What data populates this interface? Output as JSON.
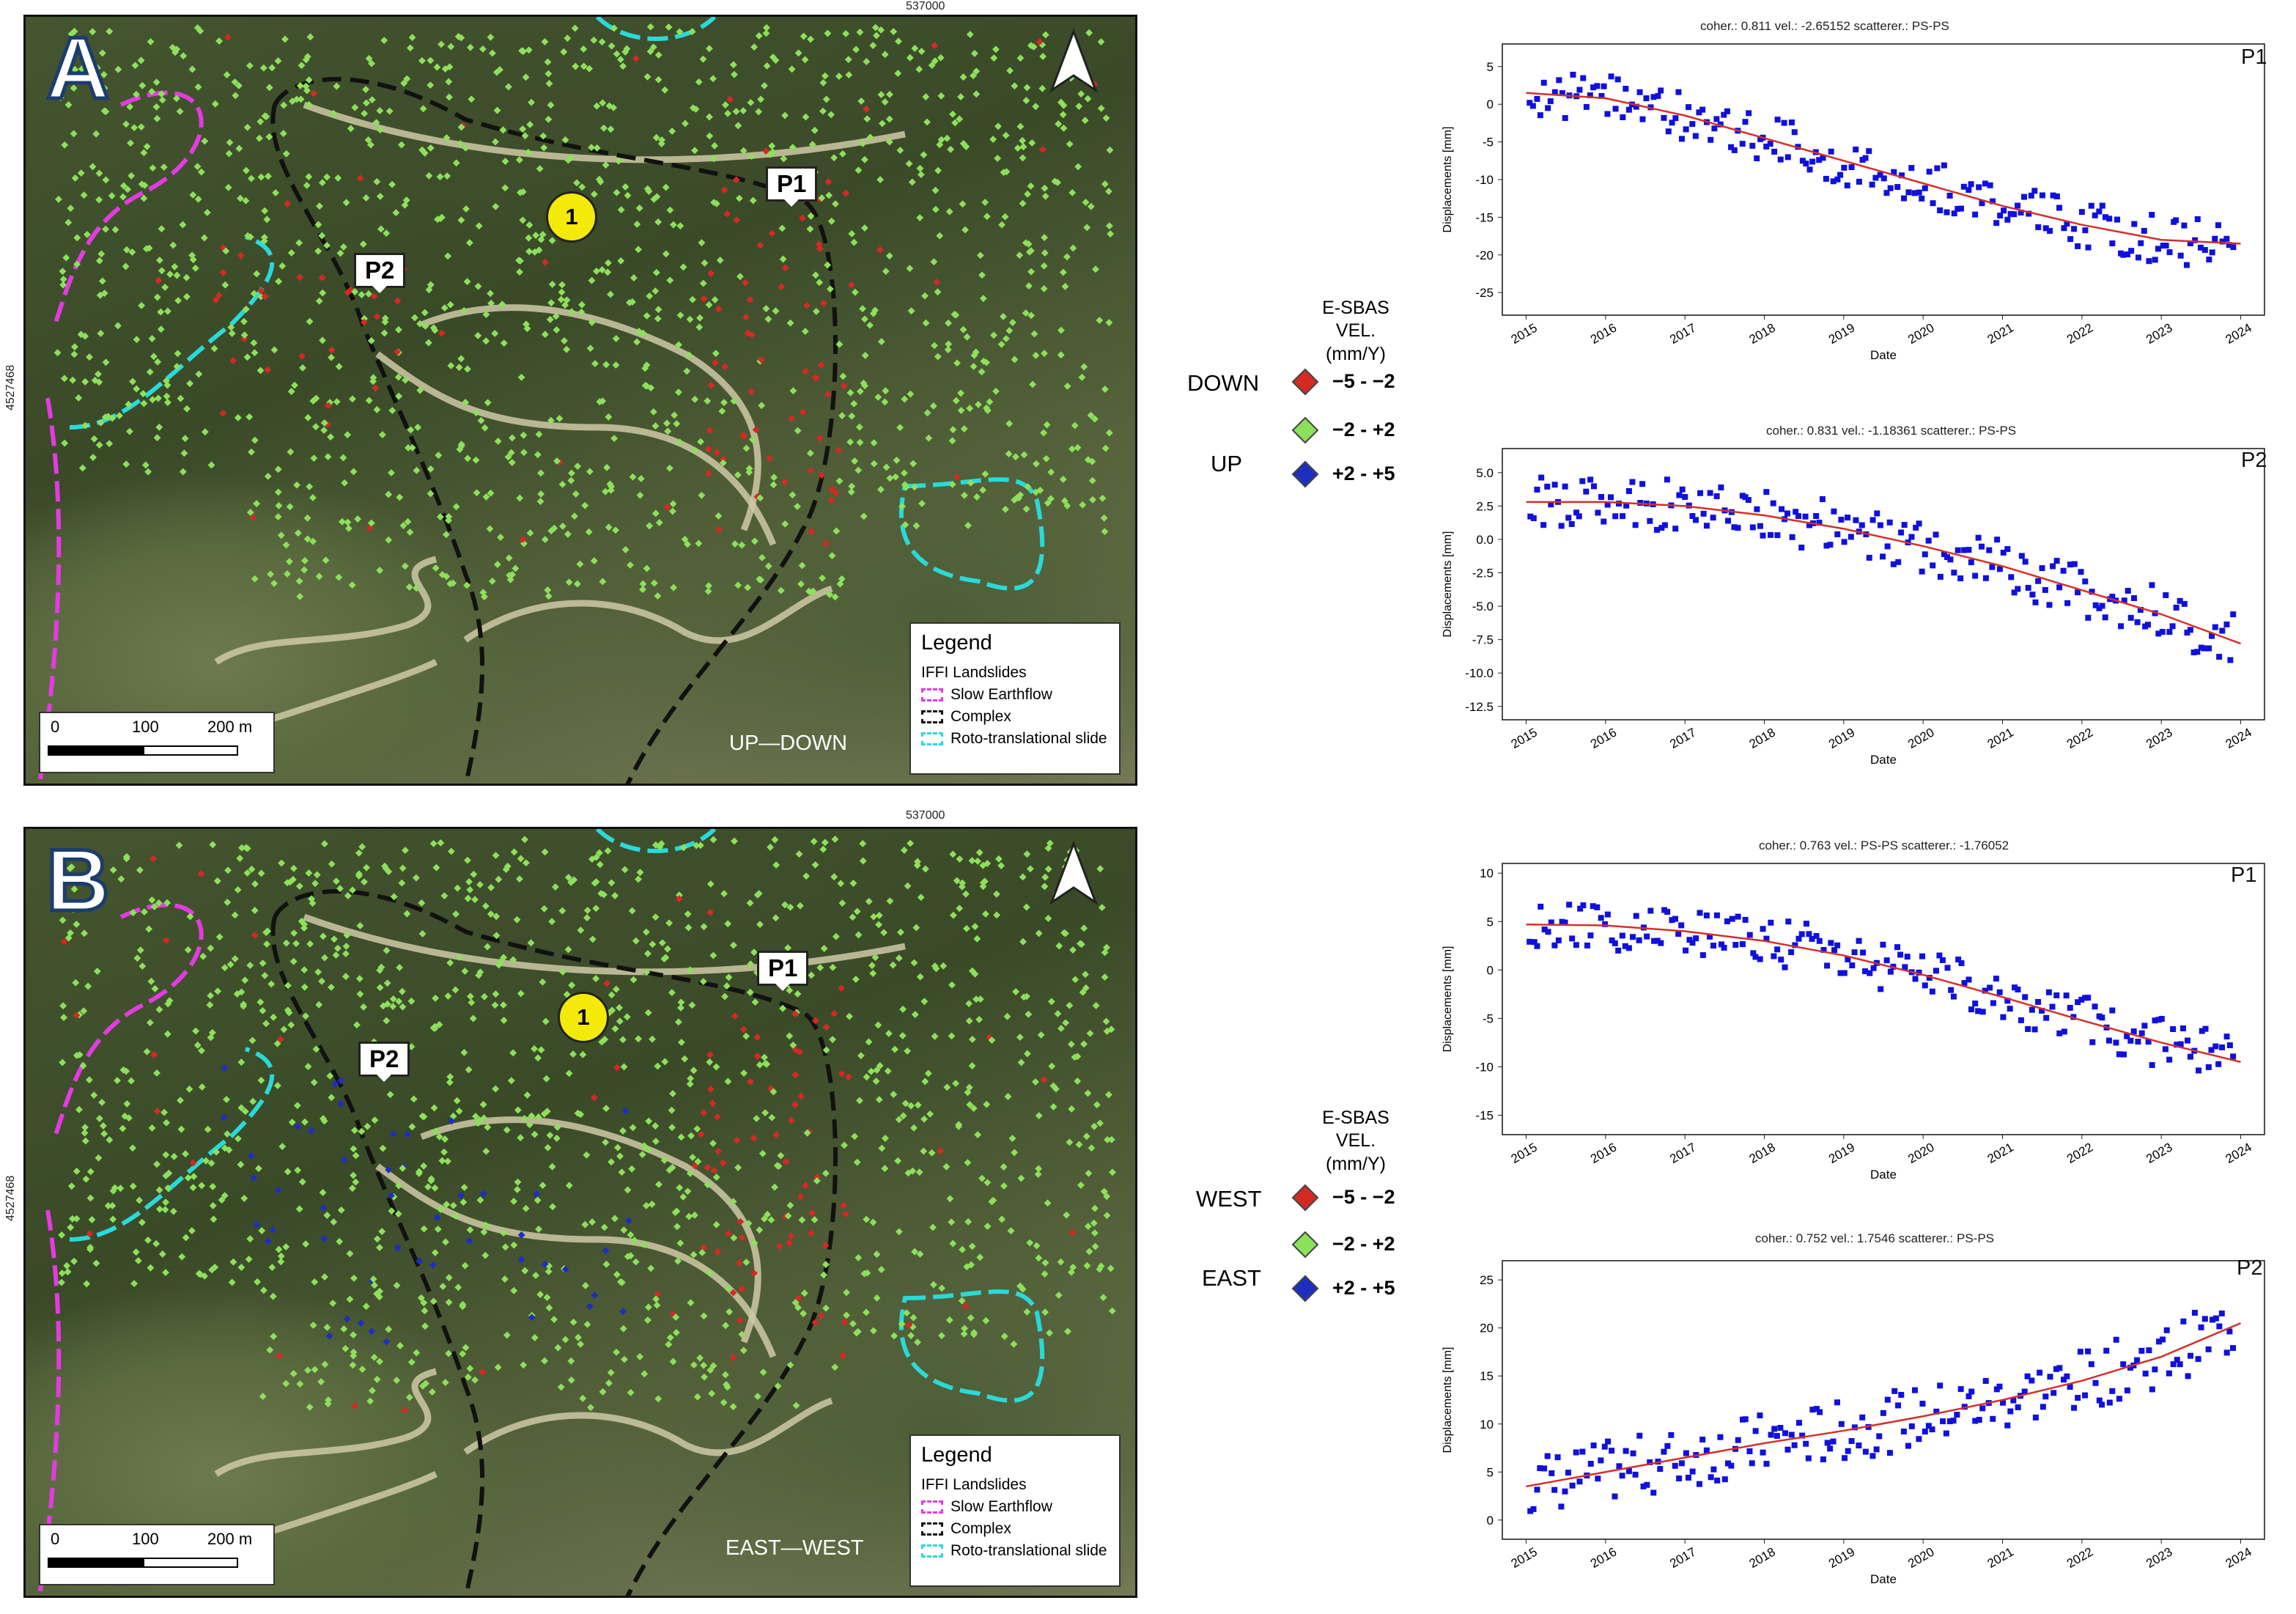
{
  "colors": {
    "down": "#d32a23",
    "stable": "#8ce05a",
    "up": "#1d2fc0",
    "earthflow": "#e33be0",
    "complex": "#111111",
    "roto": "#2ad9d9",
    "scatter": "#1010dd",
    "trend": "#d4302a"
  },
  "panelA": {
    "letter": "A",
    "coord_top": "537000",
    "coord_left": "4527468",
    "marker": "1",
    "p1": "P1",
    "p2": "P2",
    "direction": "UP—DOWN",
    "scale": {
      "a": "0",
      "b": "100",
      "c": "200 m"
    },
    "legend": {
      "title": "Legend",
      "subtitle": "IFFI Landslides",
      "items": [
        "Slow Earthflow",
        "Complex",
        "Roto-translational slide"
      ]
    }
  },
  "panelB": {
    "letter": "B",
    "coord_top": "537000",
    "coord_left": "4527468",
    "marker": "1",
    "p1": "P1",
    "p2": "P2",
    "direction": "EAST—WEST",
    "scale": {
      "a": "0",
      "b": "100",
      "c": "200 m"
    },
    "legend": {
      "title": "Legend",
      "subtitle": "IFFI Landslides",
      "items": [
        "Slow Earthflow",
        "Complex",
        "Roto-translational slide"
      ]
    }
  },
  "legendA": {
    "title": "E-SBAS VEL. (mm/Y)",
    "side_top": "DOWN",
    "side_bottom": "UP",
    "classes": [
      "−5 - −2",
      "−2 - +2",
      "+2 - +5"
    ]
  },
  "legendB": {
    "title": "E-SBAS VEL. (mm/Y)",
    "side_top": "WEST",
    "side_bottom": "EAST",
    "classes": [
      "−5 - −2",
      "−2 - +2",
      "+2 - +5"
    ]
  },
  "chart_data": [
    {
      "id": "A-P1",
      "type": "scatter",
      "label": "P1",
      "title": "coher.: 0.811 vel.: -2.65152 scatterer.: PS-PS",
      "xlabel": "Date",
      "ylabel": "Displacements [mm]",
      "xlim": [
        2014.7,
        2024.3
      ],
      "ylim": [
        -28,
        8
      ],
      "yticks": [
        5,
        0,
        -5,
        -10,
        -15,
        -20,
        -25
      ],
      "xticks": [
        2015,
        2016,
        2017,
        2018,
        2019,
        2020,
        2021,
        2022,
        2023,
        2024
      ],
      "trend": [
        [
          2015,
          1.5
        ],
        [
          2016,
          0.8
        ],
        [
          2017,
          -1.5
        ],
        [
          2018,
          -4.5
        ],
        [
          2019,
          -7.5
        ],
        [
          2020,
          -10.5
        ],
        [
          2021,
          -13.5
        ],
        [
          2022,
          -16
        ],
        [
          2023,
          -18
        ],
        [
          2024,
          -18.5
        ]
      ],
      "start": 1.5,
      "end": -18.5,
      "noise": 3.2
    },
    {
      "id": "A-P2",
      "type": "scatter",
      "label": "P2",
      "title": "coher.: 0.831 vel.: -1.18361 scatterer.: PS-PS",
      "xlabel": "Date",
      "ylabel": "Displacements [mm]",
      "xlim": [
        2014.7,
        2024.3
      ],
      "ylim": [
        -13.5,
        6.8
      ],
      "yticks": [
        5.0,
        2.5,
        0.0,
        -2.5,
        -5.0,
        -7.5,
        -10.0,
        -12.5
      ],
      "xticks": [
        2015,
        2016,
        2017,
        2018,
        2019,
        2020,
        2021,
        2022,
        2023,
        2024
      ],
      "trend": [
        [
          2015,
          2.8
        ],
        [
          2016,
          2.8
        ],
        [
          2017,
          2.5
        ],
        [
          2018,
          1.8
        ],
        [
          2019,
          0.8
        ],
        [
          2020,
          -0.5
        ],
        [
          2021,
          -2.0
        ],
        [
          2022,
          -3.8
        ],
        [
          2023,
          -5.6
        ],
        [
          2024,
          -7.8
        ]
      ],
      "noise": 2.0
    },
    {
      "id": "B-P1",
      "type": "scatter",
      "label": "P1",
      "title": "coher.: 0.763 vel.: PS-PS scatterer.: -1.76052",
      "xlabel": "Date",
      "ylabel": "Displacements [mm]",
      "xlim": [
        2014.7,
        2024.3
      ],
      "ylim": [
        -17,
        11
      ],
      "yticks": [
        10,
        5,
        0,
        -5,
        -10,
        -15
      ],
      "xticks": [
        2015,
        2016,
        2017,
        2018,
        2019,
        2020,
        2021,
        2022,
        2023,
        2024
      ],
      "trend": [
        [
          2015,
          4.7
        ],
        [
          2016,
          4.6
        ],
        [
          2017,
          4.0
        ],
        [
          2018,
          3.0
        ],
        [
          2019,
          1.5
        ],
        [
          2020,
          -0.5
        ],
        [
          2021,
          -2.8
        ],
        [
          2022,
          -5.2
        ],
        [
          2023,
          -7.5
        ],
        [
          2024,
          -9.5
        ]
      ],
      "noise": 2.6
    },
    {
      "id": "B-P2",
      "type": "scatter",
      "label": "P2",
      "title": "coher.: 0.752 vel.: 1.7546 scatterer.: PS-PS",
      "xlabel": "Date",
      "ylabel": "Displacements [mm]",
      "xlim": [
        2014.7,
        2024.3
      ],
      "ylim": [
        -2,
        27
      ],
      "yticks": [
        0,
        5,
        10,
        15,
        20,
        25
      ],
      "xticks": [
        2015,
        2016,
        2017,
        2018,
        2019,
        2020,
        2021,
        2022,
        2023,
        2024
      ],
      "trend": [
        [
          2015,
          3.5
        ],
        [
          2016,
          5.0
        ],
        [
          2017,
          6.5
        ],
        [
          2018,
          8.0
        ],
        [
          2019,
          9.3
        ],
        [
          2020,
          10.8
        ],
        [
          2021,
          12.5
        ],
        [
          2022,
          14.5
        ],
        [
          2023,
          17.0
        ],
        [
          2024,
          20.5
        ]
      ],
      "noise": 3.2
    }
  ]
}
